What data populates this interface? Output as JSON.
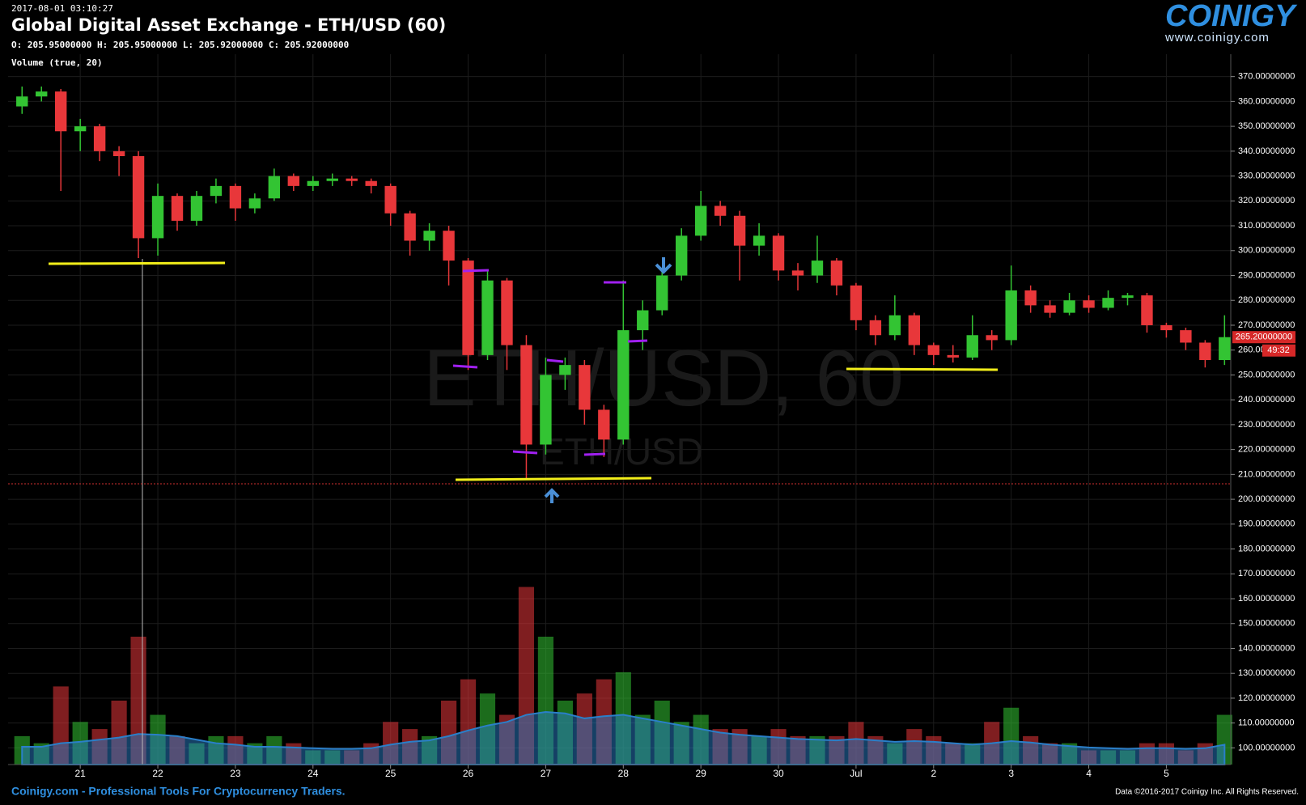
{
  "header": {
    "timestamp": "2017-08-01 03:10:27",
    "ohlc": "O: 205.95000000 H: 205.95000000 L: 205.92000000 C: 205.92000000",
    "indicator": "Volume (true, 20)"
  },
  "logo": {
    "brand": "COINIGY",
    "url": "www.coinigy.com"
  },
  "footer": {
    "left": "Coinigy.com - Professional Tools For Cryptocurrency Traders.",
    "right": "Data ©2016-2017 Coinigy Inc. All Rights Reserved."
  },
  "chart_data": {
    "type": "candlestick",
    "title": "Global Digital Asset Exchange - ETH/USD (60)",
    "watermark": "ETH/USD, 60",
    "watermark_sub": "ETH/USD",
    "up_color": "#33c433",
    "down_color": "#e8373a",
    "grid": true,
    "x": [
      20.25,
      20.5,
      20.75,
      21,
      21.25,
      21.5,
      21.75,
      22,
      22.25,
      22.5,
      22.75,
      23,
      23.25,
      23.5,
      23.75,
      24,
      24.25,
      24.5,
      24.75,
      25,
      25.25,
      25.5,
      25.75,
      26,
      26.25,
      26.5,
      26.75,
      27,
      27.25,
      27.5,
      27.75,
      28,
      28.25,
      28.5,
      28.75,
      29,
      29.25,
      29.5,
      29.75,
      30,
      30.25,
      30.5,
      30.75,
      31,
      31.25,
      31.5,
      31.75,
      32,
      32.25,
      32.5,
      32.75,
      33,
      33.25,
      33.5,
      33.75,
      34,
      34.25,
      34.5,
      34.75,
      35,
      35.25,
      35.5,
      35.75
    ],
    "open": [
      358,
      362,
      364,
      348,
      350,
      340,
      338,
      305,
      322,
      312,
      322,
      326,
      317,
      321,
      330,
      326,
      328,
      329,
      328,
      326,
      315,
      304,
      308,
      296,
      258,
      288,
      262,
      222,
      250,
      254,
      236,
      224,
      268,
      276,
      290,
      306,
      318,
      314,
      302,
      306,
      292,
      290,
      296,
      286,
      272,
      266,
      274,
      262,
      258,
      257,
      266,
      264,
      284,
      278,
      275,
      280,
      277,
      281,
      282,
      270,
      268,
      263,
      256
    ],
    "high": [
      366,
      366,
      365,
      353,
      351,
      342,
      340,
      327,
      323,
      324,
      329,
      327,
      323,
      333,
      331,
      330,
      331,
      330,
      329,
      327,
      316,
      311,
      310,
      297,
      292,
      289,
      266,
      257,
      257,
      256,
      238,
      288,
      280,
      293,
      309,
      324,
      320,
      316,
      311,
      307,
      295,
      306,
      297,
      287,
      274,
      282,
      275,
      263,
      262,
      274,
      268,
      294,
      286,
      280,
      283,
      282,
      284,
      283,
      283,
      271,
      269,
      264,
      274
    ],
    "low": [
      355,
      360,
      324,
      340,
      336,
      330,
      297,
      298,
      308,
      310,
      319,
      312,
      315,
      320,
      324,
      324,
      326,
      326,
      323,
      310,
      298,
      300,
      286,
      252,
      256,
      252,
      208,
      218,
      244,
      230,
      217,
      222,
      260,
      274,
      288,
      304,
      310,
      288,
      298,
      288,
      284,
      287,
      282,
      268,
      262,
      264,
      258,
      254,
      255,
      256,
      260,
      262,
      275,
      273,
      274,
      275,
      276,
      278,
      267,
      265,
      260,
      253,
      254
    ],
    "close": [
      362,
      364,
      348,
      350,
      340,
      338,
      305,
      322,
      312,
      322,
      326,
      317,
      321,
      330,
      326,
      328,
      329,
      328,
      326,
      315,
      304,
      308,
      296,
      258,
      288,
      262,
      222,
      250,
      254,
      236,
      224,
      268,
      276,
      290,
      306,
      318,
      314,
      302,
      306,
      292,
      290,
      296,
      286,
      272,
      266,
      274,
      262,
      258,
      257,
      266,
      264,
      284,
      278,
      275,
      280,
      277,
      281,
      282,
      270,
      268,
      263,
      256,
      265.2
    ],
    "volume": [
      4,
      3,
      11,
      6,
      5,
      9,
      18,
      7,
      4,
      3,
      4,
      4,
      3,
      4,
      3,
      2,
      2,
      2,
      3,
      6,
      5,
      4,
      9,
      12,
      10,
      7,
      25,
      18,
      9,
      10,
      12,
      13,
      7,
      9,
      6,
      7,
      5,
      5,
      4,
      5,
      4,
      4,
      4,
      6,
      4,
      3,
      5,
      4,
      3,
      3,
      6,
      8,
      4,
      3,
      3,
      2,
      2,
      2,
      3,
      3,
      2,
      3,
      7
    ],
    "volume_ma": [
      2.5,
      2.5,
      3,
      3.2,
      3.5,
      3.8,
      4.3,
      4.2,
      4,
      3.5,
      3,
      2.8,
      2.5,
      2.5,
      2.4,
      2.3,
      2.2,
      2.2,
      2.3,
      2.8,
      3.2,
      3.4,
      4,
      4.8,
      5.5,
      6,
      7,
      7.4,
      7.2,
      6.5,
      6.8,
      7,
      6.5,
      6,
      5.5,
      5,
      4.5,
      4.2,
      4,
      3.8,
      3.6,
      3.5,
      3.4,
      3.6,
      3.4,
      3.2,
      3.3,
      3.2,
      3,
      2.8,
      3,
      3.3,
      3.1,
      2.8,
      2.6,
      2.4,
      2.3,
      2.2,
      2.3,
      2.3,
      2.2,
      2.3,
      2.8
    ],
    "volume_ma_color": "#2a7fc9",
    "xlim": [
      20.07,
      35.83
    ],
    "xticks": [
      21,
      22,
      23,
      24,
      25,
      26,
      27,
      28,
      29,
      30,
      {
        "value": 31,
        "label": "Jul"
      },
      {
        "value": 32,
        "label": "2"
      },
      {
        "value": 33,
        "label": "3"
      },
      {
        "value": 34,
        "label": "4"
      },
      {
        "value": 35,
        "label": "5"
      }
    ],
    "ylim": [
      93.3,
      379
    ],
    "yticks": [
      {
        "value": 100,
        "label": "100.00000000"
      },
      {
        "value": 110,
        "label": "110.00000000"
      },
      {
        "value": 120,
        "label": "120.00000000"
      },
      {
        "value": 130,
        "label": "130.00000000"
      },
      {
        "value": 140,
        "label": "140.00000000"
      },
      {
        "value": 150,
        "label": "150.00000000"
      },
      {
        "value": 160,
        "label": "160.00000000"
      },
      {
        "value": 170,
        "label": "170.00000000"
      },
      {
        "value": 180,
        "label": "180.00000000"
      },
      {
        "value": 190,
        "label": "190.00000000"
      },
      {
        "value": 200,
        "label": "200.00000000"
      },
      {
        "value": 210,
        "label": "210.00000000"
      },
      {
        "value": 220,
        "label": "220.00000000"
      },
      {
        "value": 230,
        "label": "230.00000000"
      },
      {
        "value": 240,
        "label": "240.00000000"
      },
      {
        "value": 250,
        "label": "250.00000000"
      },
      {
        "value": 260,
        "label": "260.00000000"
      },
      {
        "value": 270,
        "label": "270.00000000"
      },
      {
        "value": 280,
        "label": "280.00000000"
      },
      {
        "value": 290,
        "label": "290.00000000"
      },
      {
        "value": 300,
        "label": "300.00000000"
      },
      {
        "value": 310,
        "label": "310.00000000"
      },
      {
        "value": 320,
        "label": "320.00000000"
      },
      {
        "value": 330,
        "label": "330.00000000"
      },
      {
        "value": 340,
        "label": "340.00000000"
      },
      {
        "value": 350,
        "label": "350.00000000"
      },
      {
        "value": 360,
        "label": "360.00000000"
      },
      {
        "value": 370,
        "label": "370.00000000"
      }
    ],
    "y2lim": [
      0,
      100
    ],
    "last_price": {
      "value": 265.2,
      "label": "265.20000000"
    },
    "countdown": "49:32"
  }
}
